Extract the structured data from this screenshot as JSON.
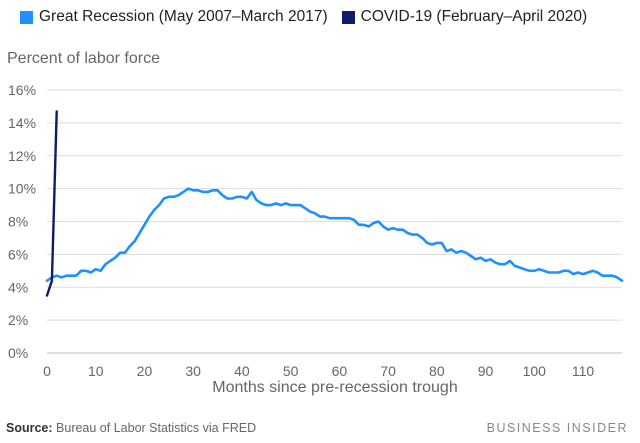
{
  "chart_data": {
    "type": "line",
    "title": "",
    "ylabel": "Percent of labor force",
    "xlabel": "Months since pre-recession trough",
    "xlim": [
      0,
      118
    ],
    "ylim": [
      0,
      16
    ],
    "x_ticks": [
      "0",
      "10",
      "20",
      "30",
      "40",
      "50",
      "60",
      "70",
      "80",
      "90",
      "100",
      "110"
    ],
    "y_ticks": [
      "0%",
      "2%",
      "4%",
      "6%",
      "8%",
      "10%",
      "12%",
      "14%",
      "16%"
    ],
    "grid": true,
    "legend_position": "top",
    "series": [
      {
        "name": "Great Recession (May 2007–March 2017)",
        "color": "#1e90ff",
        "x": [
          0,
          1,
          2,
          3,
          4,
          5,
          6,
          7,
          8,
          9,
          10,
          11,
          12,
          13,
          14,
          15,
          16,
          17,
          18,
          19,
          20,
          21,
          22,
          23,
          24,
          25,
          26,
          27,
          28,
          29,
          30,
          31,
          32,
          33,
          34,
          35,
          36,
          37,
          38,
          39,
          40,
          41,
          42,
          43,
          44,
          45,
          46,
          47,
          48,
          49,
          50,
          51,
          52,
          53,
          54,
          55,
          56,
          57,
          58,
          59,
          60,
          61,
          62,
          63,
          64,
          65,
          66,
          67,
          68,
          69,
          70,
          71,
          72,
          73,
          74,
          75,
          76,
          77,
          78,
          79,
          80,
          81,
          82,
          83,
          84,
          85,
          86,
          87,
          88,
          89,
          90,
          91,
          92,
          93,
          94,
          95,
          96,
          97,
          98,
          99,
          100,
          101,
          102,
          103,
          104,
          105,
          106,
          107,
          108,
          109,
          110,
          111,
          112,
          113,
          114,
          115,
          116,
          117,
          118
        ],
        "values": [
          4.4,
          4.6,
          4.7,
          4.6,
          4.7,
          4.7,
          4.7,
          5.0,
          5.0,
          4.9,
          5.1,
          5.0,
          5.4,
          5.6,
          5.8,
          6.1,
          6.1,
          6.5,
          6.8,
          7.3,
          7.8,
          8.3,
          8.7,
          9.0,
          9.4,
          9.5,
          9.5,
          9.6,
          9.8,
          10.0,
          9.9,
          9.9,
          9.8,
          9.8,
          9.9,
          9.9,
          9.6,
          9.4,
          9.4,
          9.5,
          9.5,
          9.4,
          9.8,
          9.3,
          9.1,
          9.0,
          9.0,
          9.1,
          9.0,
          9.1,
          9.0,
          9.0,
          9.0,
          8.8,
          8.6,
          8.5,
          8.3,
          8.3,
          8.2,
          8.2,
          8.2,
          8.2,
          8.2,
          8.1,
          7.8,
          7.8,
          7.7,
          7.9,
          8.0,
          7.7,
          7.5,
          7.6,
          7.5,
          7.5,
          7.3,
          7.2,
          7.2,
          7.0,
          6.7,
          6.6,
          6.7,
          6.7,
          6.2,
          6.3,
          6.1,
          6.2,
          6.1,
          5.9,
          5.7,
          5.8,
          5.6,
          5.7,
          5.5,
          5.4,
          5.4,
          5.6,
          5.3,
          5.2,
          5.1,
          5.0,
          5.0,
          5.1,
          5.0,
          4.9,
          4.9,
          4.9,
          5.0,
          5.0,
          4.8,
          4.9,
          4.8,
          4.9,
          5.0,
          4.9,
          4.7,
          4.7,
          4.7,
          4.6,
          4.4
        ]
      },
      {
        "name": "COVID-19 (February–April 2020)",
        "color": "#0d1b6f",
        "x": [
          0,
          1,
          2
        ],
        "values": [
          3.5,
          4.4,
          14.7
        ]
      }
    ]
  },
  "footer": {
    "source_label": "Source:",
    "source_text": "Bureau of Labor Statistics via FRED",
    "brand": "BUSINESS INSIDER"
  }
}
